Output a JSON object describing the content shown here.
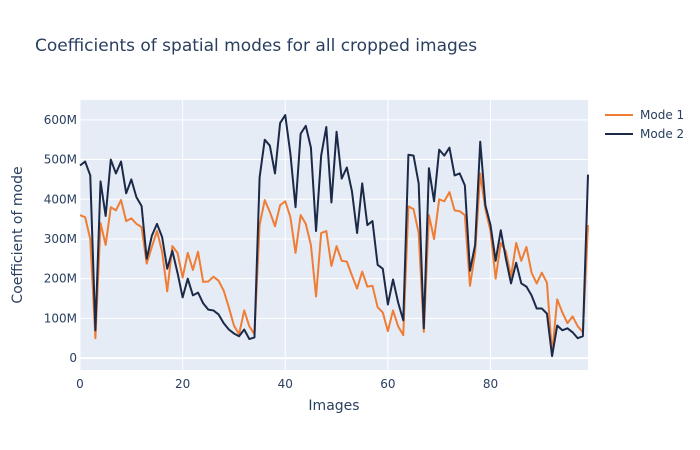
{
  "chart_data": {
    "type": "line",
    "title": "Coefficients of spatial modes for all cropped images",
    "xlabel": "Images",
    "ylabel": "Coefficient of mode",
    "xlim": [
      0,
      99
    ],
    "ylim": [
      -30000000,
      650000000
    ],
    "x_ticks": [
      0,
      20,
      40,
      60,
      80
    ],
    "x_tick_labels": [
      "0",
      "20",
      "40",
      "60",
      "80"
    ],
    "y_ticks": [
      0,
      100000000,
      200000000,
      300000000,
      400000000,
      500000000,
      600000000
    ],
    "y_tick_labels": [
      "0",
      "100M",
      "200M",
      "300M",
      "400M",
      "500M",
      "600M"
    ],
    "grid": true,
    "legend_position": "top-right, outside plot",
    "background_color": "#e5ecf6",
    "series": [
      {
        "name": "Mode 1",
        "color": "#ef7d35",
        "values": [
          360000000,
          355000000,
          300000000,
          50000000,
          340000000,
          285000000,
          380000000,
          372000000,
          398000000,
          345000000,
          352000000,
          338000000,
          330000000,
          238000000,
          280000000,
          320000000,
          268000000,
          168000000,
          282000000,
          265000000,
          203000000,
          265000000,
          222000000,
          268000000,
          192000000,
          193000000,
          205000000,
          195000000,
          170000000,
          128000000,
          82000000,
          60000000,
          120000000,
          80000000,
          60000000,
          335000000,
          398000000,
          368000000,
          332000000,
          385000000,
          395000000,
          355000000,
          265000000,
          360000000,
          338000000,
          285000000,
          155000000,
          315000000,
          320000000,
          232000000,
          282000000,
          245000000,
          243000000,
          208000000,
          175000000,
          218000000,
          180000000,
          182000000,
          128000000,
          115000000,
          68000000,
          120000000,
          80000000,
          58000000,
          382000000,
          375000000,
          315000000,
          66000000,
          360000000,
          300000000,
          400000000,
          395000000,
          418000000,
          372000000,
          370000000,
          360000000,
          182000000,
          265000000,
          465000000,
          375000000,
          320000000,
          200000000,
          290000000,
          268000000,
          205000000,
          290000000,
          245000000,
          280000000,
          215000000,
          188000000,
          215000000,
          190000000,
          10000000,
          148000000,
          115000000,
          88000000,
          105000000,
          80000000,
          65000000,
          335000000
        ]
      },
      {
        "name": "Mode 2",
        "color": "#1c2a48",
        "values": [
          485000000,
          495000000,
          460000000,
          70000000,
          445000000,
          358000000,
          500000000,
          465000000,
          495000000,
          415000000,
          450000000,
          405000000,
          383000000,
          250000000,
          308000000,
          338000000,
          305000000,
          225000000,
          270000000,
          215000000,
          153000000,
          200000000,
          158000000,
          165000000,
          138000000,
          122000000,
          120000000,
          110000000,
          88000000,
          72000000,
          62000000,
          55000000,
          72000000,
          48000000,
          52000000,
          455000000,
          550000000,
          535000000,
          465000000,
          592000000,
          612000000,
          515000000,
          380000000,
          565000000,
          585000000,
          530000000,
          320000000,
          510000000,
          582000000,
          392000000,
          570000000,
          452000000,
          480000000,
          420000000,
          315000000,
          440000000,
          335000000,
          345000000,
          235000000,
          225000000,
          135000000,
          198000000,
          140000000,
          95000000,
          512000000,
          510000000,
          440000000,
          75000000,
          478000000,
          395000000,
          525000000,
          510000000,
          530000000,
          460000000,
          465000000,
          435000000,
          220000000,
          285000000,
          545000000,
          385000000,
          335000000,
          245000000,
          322000000,
          250000000,
          188000000,
          240000000,
          188000000,
          180000000,
          158000000,
          125000000,
          125000000,
          112000000,
          5000000,
          82000000,
          70000000,
          75000000,
          65000000,
          50000000,
          55000000,
          462000000
        ]
      }
    ]
  }
}
